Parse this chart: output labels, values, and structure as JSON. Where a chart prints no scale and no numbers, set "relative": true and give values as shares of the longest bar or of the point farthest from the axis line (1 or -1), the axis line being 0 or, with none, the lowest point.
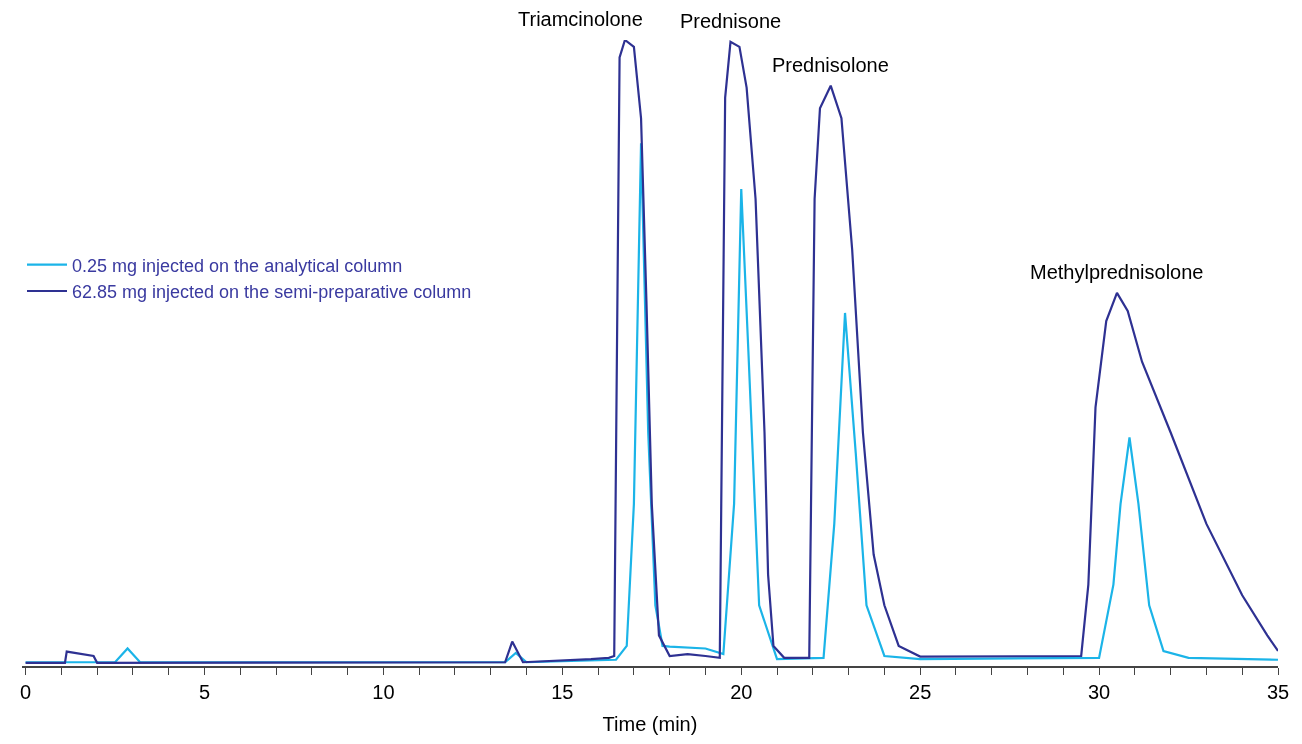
{
  "chart_data": {
    "type": "line",
    "relative": true,
    "xlabel": "Time (min)",
    "xlim": [
      -0.1,
      35
    ],
    "xticks": [
      0,
      {
        "value": 1,
        "label": null
      },
      {
        "value": 2,
        "label": null
      },
      {
        "value": 3,
        "label": null
      },
      {
        "value": 4,
        "label": null
      },
      5,
      {
        "value": 6,
        "label": null
      },
      {
        "value": 7,
        "label": null
      },
      {
        "value": 8,
        "label": null
      },
      {
        "value": 9,
        "label": null
      },
      10,
      {
        "value": 11,
        "label": null
      },
      {
        "value": 12,
        "label": null
      },
      {
        "value": 13,
        "label": null
      },
      {
        "value": 14,
        "label": null
      },
      15,
      {
        "value": 16,
        "label": null
      },
      {
        "value": 17,
        "label": null
      },
      {
        "value": 18,
        "label": null
      },
      {
        "value": 19,
        "label": null
      },
      20,
      {
        "value": 21,
        "label": null
      },
      {
        "value": 22,
        "label": null
      },
      {
        "value": 23,
        "label": null
      },
      {
        "value": 24,
        "label": null
      },
      25,
      {
        "value": 26,
        "label": null
      },
      {
        "value": 27,
        "label": null
      },
      {
        "value": 28,
        "label": null
      },
      {
        "value": 29,
        "label": null
      },
      30,
      {
        "value": 31,
        "label": null
      },
      {
        "value": 32,
        "label": null
      },
      {
        "value": 33,
        "label": null
      },
      {
        "value": 34,
        "label": null
      },
      35
    ],
    "legend": "left",
    "marker": "none",
    "line_style": "solid",
    "series": [
      {
        "name": "0.25 mg injected on the analytical column",
        "color": "#1bb4e8",
        "x": [
          0,
          2.5,
          2.85,
          3.2,
          13.4,
          13.7,
          14.0,
          16.5,
          16.8,
          17.0,
          17.2,
          17.4,
          17.6,
          17.8,
          18.0,
          19.0,
          19.5,
          19.8,
          20.0,
          20.2,
          20.5,
          21.0,
          22.3,
          22.6,
          22.9,
          23.2,
          23.5,
          24.0,
          25.0,
          30.0,
          30.4,
          30.6,
          30.85,
          31.1,
          31.4,
          31.8,
          32.5,
          35.0
        ],
        "values": [
          0.006,
          0.006,
          0.028,
          0.006,
          0.006,
          0.021,
          0.006,
          0.01,
          0.032,
          0.259,
          0.835,
          0.373,
          0.097,
          0.032,
          0.031,
          0.028,
          0.019,
          0.259,
          0.762,
          0.502,
          0.097,
          0.011,
          0.013,
          0.227,
          0.564,
          0.34,
          0.097,
          0.016,
          0.011,
          0.013,
          0.13,
          0.259,
          0.365,
          0.259,
          0.097,
          0.024,
          0.013,
          0.01
        ]
      },
      {
        "name": "62.85 mg injected on the semi-preparative column",
        "color": "#2e3192",
        "x": [
          0,
          1.1,
          1.15,
          1.9,
          2.0,
          13.4,
          13.6,
          13.9,
          15.8,
          16.3,
          16.45,
          16.6,
          16.75,
          17.0,
          17.2,
          17.35,
          17.5,
          17.7,
          18.0,
          18.5,
          19.0,
          19.4,
          19.55,
          19.7,
          19.95,
          20.15,
          20.4,
          20.65,
          20.75,
          20.9,
          21.2,
          21.9,
          22.05,
          22.2,
          22.5,
          22.8,
          23.1,
          23.4,
          23.7,
          24.0,
          24.4,
          25.0,
          29.5,
          29.7,
          29.9,
          30.2,
          30.5,
          30.8,
          31.2,
          32.0,
          33.0,
          34.0,
          34.7,
          35.0
        ],
        "values": [
          0.005,
          0.005,
          0.023,
          0.016,
          0.005,
          0.006,
          0.039,
          0.006,
          0.011,
          0.013,
          0.016,
          0.972,
          1.0,
          0.989,
          0.875,
          0.583,
          0.259,
          0.049,
          0.016,
          0.019,
          0.016,
          0.013,
          0.908,
          0.997,
          0.989,
          0.924,
          0.746,
          0.373,
          0.146,
          0.032,
          0.013,
          0.013,
          0.746,
          0.891,
          0.927,
          0.875,
          0.665,
          0.373,
          0.178,
          0.097,
          0.032,
          0.015,
          0.016,
          0.13,
          0.413,
          0.551,
          0.596,
          0.567,
          0.486,
          0.373,
          0.227,
          0.113,
          0.049,
          0.024
        ]
      }
    ],
    "annotations": [
      {
        "text": "Triamcinolone",
        "x": 16.75,
        "y": 1.0
      },
      {
        "text": "Prednisone",
        "x": 19.7,
        "y": 0.997
      },
      {
        "text": "Prednisolone",
        "x": 22.5,
        "y": 0.927
      },
      {
        "text": "Methylprednisolone",
        "x": 30.5,
        "y": 0.596
      }
    ]
  }
}
